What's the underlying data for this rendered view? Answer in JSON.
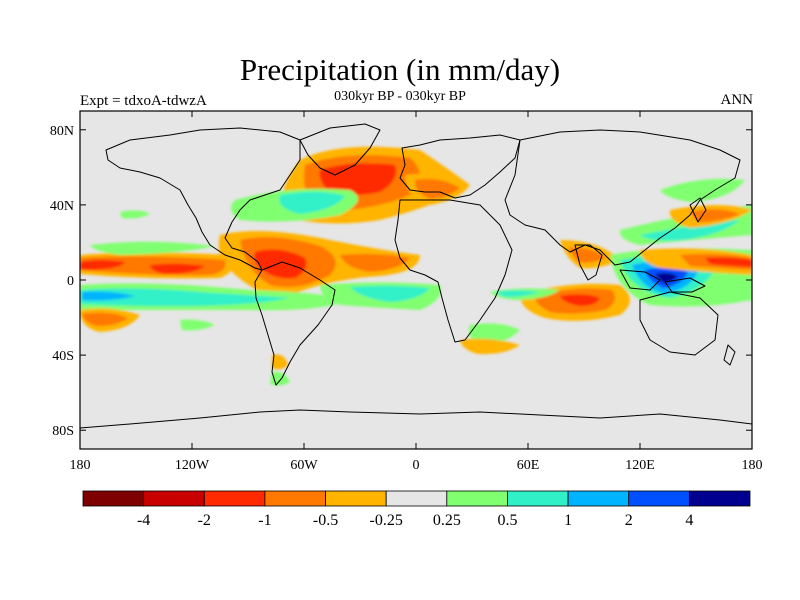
{
  "title": "Precipitation (in mm/day)",
  "subtitle": "030kyr BP - 030kyr BP",
  "left_label": "Expt = tdxoA-tdwzA",
  "right_label": "ANN",
  "map": {
    "background_color": "#e6e6e6",
    "lat_ticks": [
      "80N",
      "40N",
      "0",
      "40S",
      "80S"
    ],
    "lon_ticks": [
      "180",
      "120W",
      "60W",
      "0",
      "60E",
      "120E",
      "180"
    ],
    "lat_values": [
      80,
      40,
      0,
      -40,
      -80
    ],
    "lon_values": [
      -180,
      -120,
      -60,
      0,
      60,
      120,
      180
    ],
    "lat_range": [
      -90,
      90
    ],
    "lon_range": [
      -180,
      180
    ]
  },
  "colorbar": {
    "colors": [
      "#7f0000",
      "#c80000",
      "#ff2a00",
      "#ff7800",
      "#ffb400",
      "#e6e6e6",
      "#80ff70",
      "#30f0c8",
      "#00b4ff",
      "#0050ff",
      "#000090"
    ],
    "labels": [
      "-4",
      "-2",
      "-1",
      "-0.5",
      "-0.25",
      "0.25",
      "0.5",
      "1",
      "2",
      "4"
    ]
  }
}
